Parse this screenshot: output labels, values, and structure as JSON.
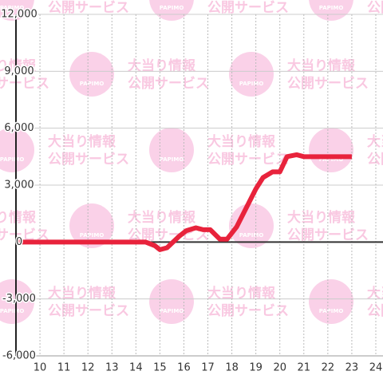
{
  "chart_data": {
    "type": "line",
    "watermark": {
      "line1": "大当り情報",
      "line2": "公開サービス",
      "logo": "PAPIMO"
    },
    "x": [
      9,
      14.4,
      14.8,
      15.0,
      15.3,
      15.8,
      16.1,
      16.5,
      16.8,
      17.1,
      17.5,
      17.8,
      18.2,
      18.6,
      19.0,
      19.3,
      19.7,
      20.0,
      20.3,
      20.7,
      21.0,
      23.0
    ],
    "values": [
      0,
      0,
      -200,
      -400,
      -300,
      300,
      600,
      750,
      650,
      650,
      150,
      150,
      800,
      1800,
      2800,
      3400,
      3700,
      3700,
      4500,
      4600,
      4500,
      4500
    ],
    "color": "#e8233c",
    "xlim": [
      9,
      24.3
    ],
    "xticks": [
      10,
      11,
      12,
      13,
      14,
      15,
      16,
      17,
      18,
      19,
      20,
      21,
      22,
      23,
      24
    ],
    "ylim": [
      -6000,
      12000
    ],
    "yticks": [
      {
        "value": -6000,
        "label": "-6,000"
      },
      {
        "value": -3000,
        "label": "-3,000"
      },
      0,
      {
        "value": 3000,
        "label": "3,000"
      },
      {
        "value": 6000,
        "label": "6,000"
      },
      {
        "value": 9000,
        "label": "9,000"
      },
      {
        "value": 12000,
        "label": "12,000"
      }
    ],
    "grid": true
  }
}
